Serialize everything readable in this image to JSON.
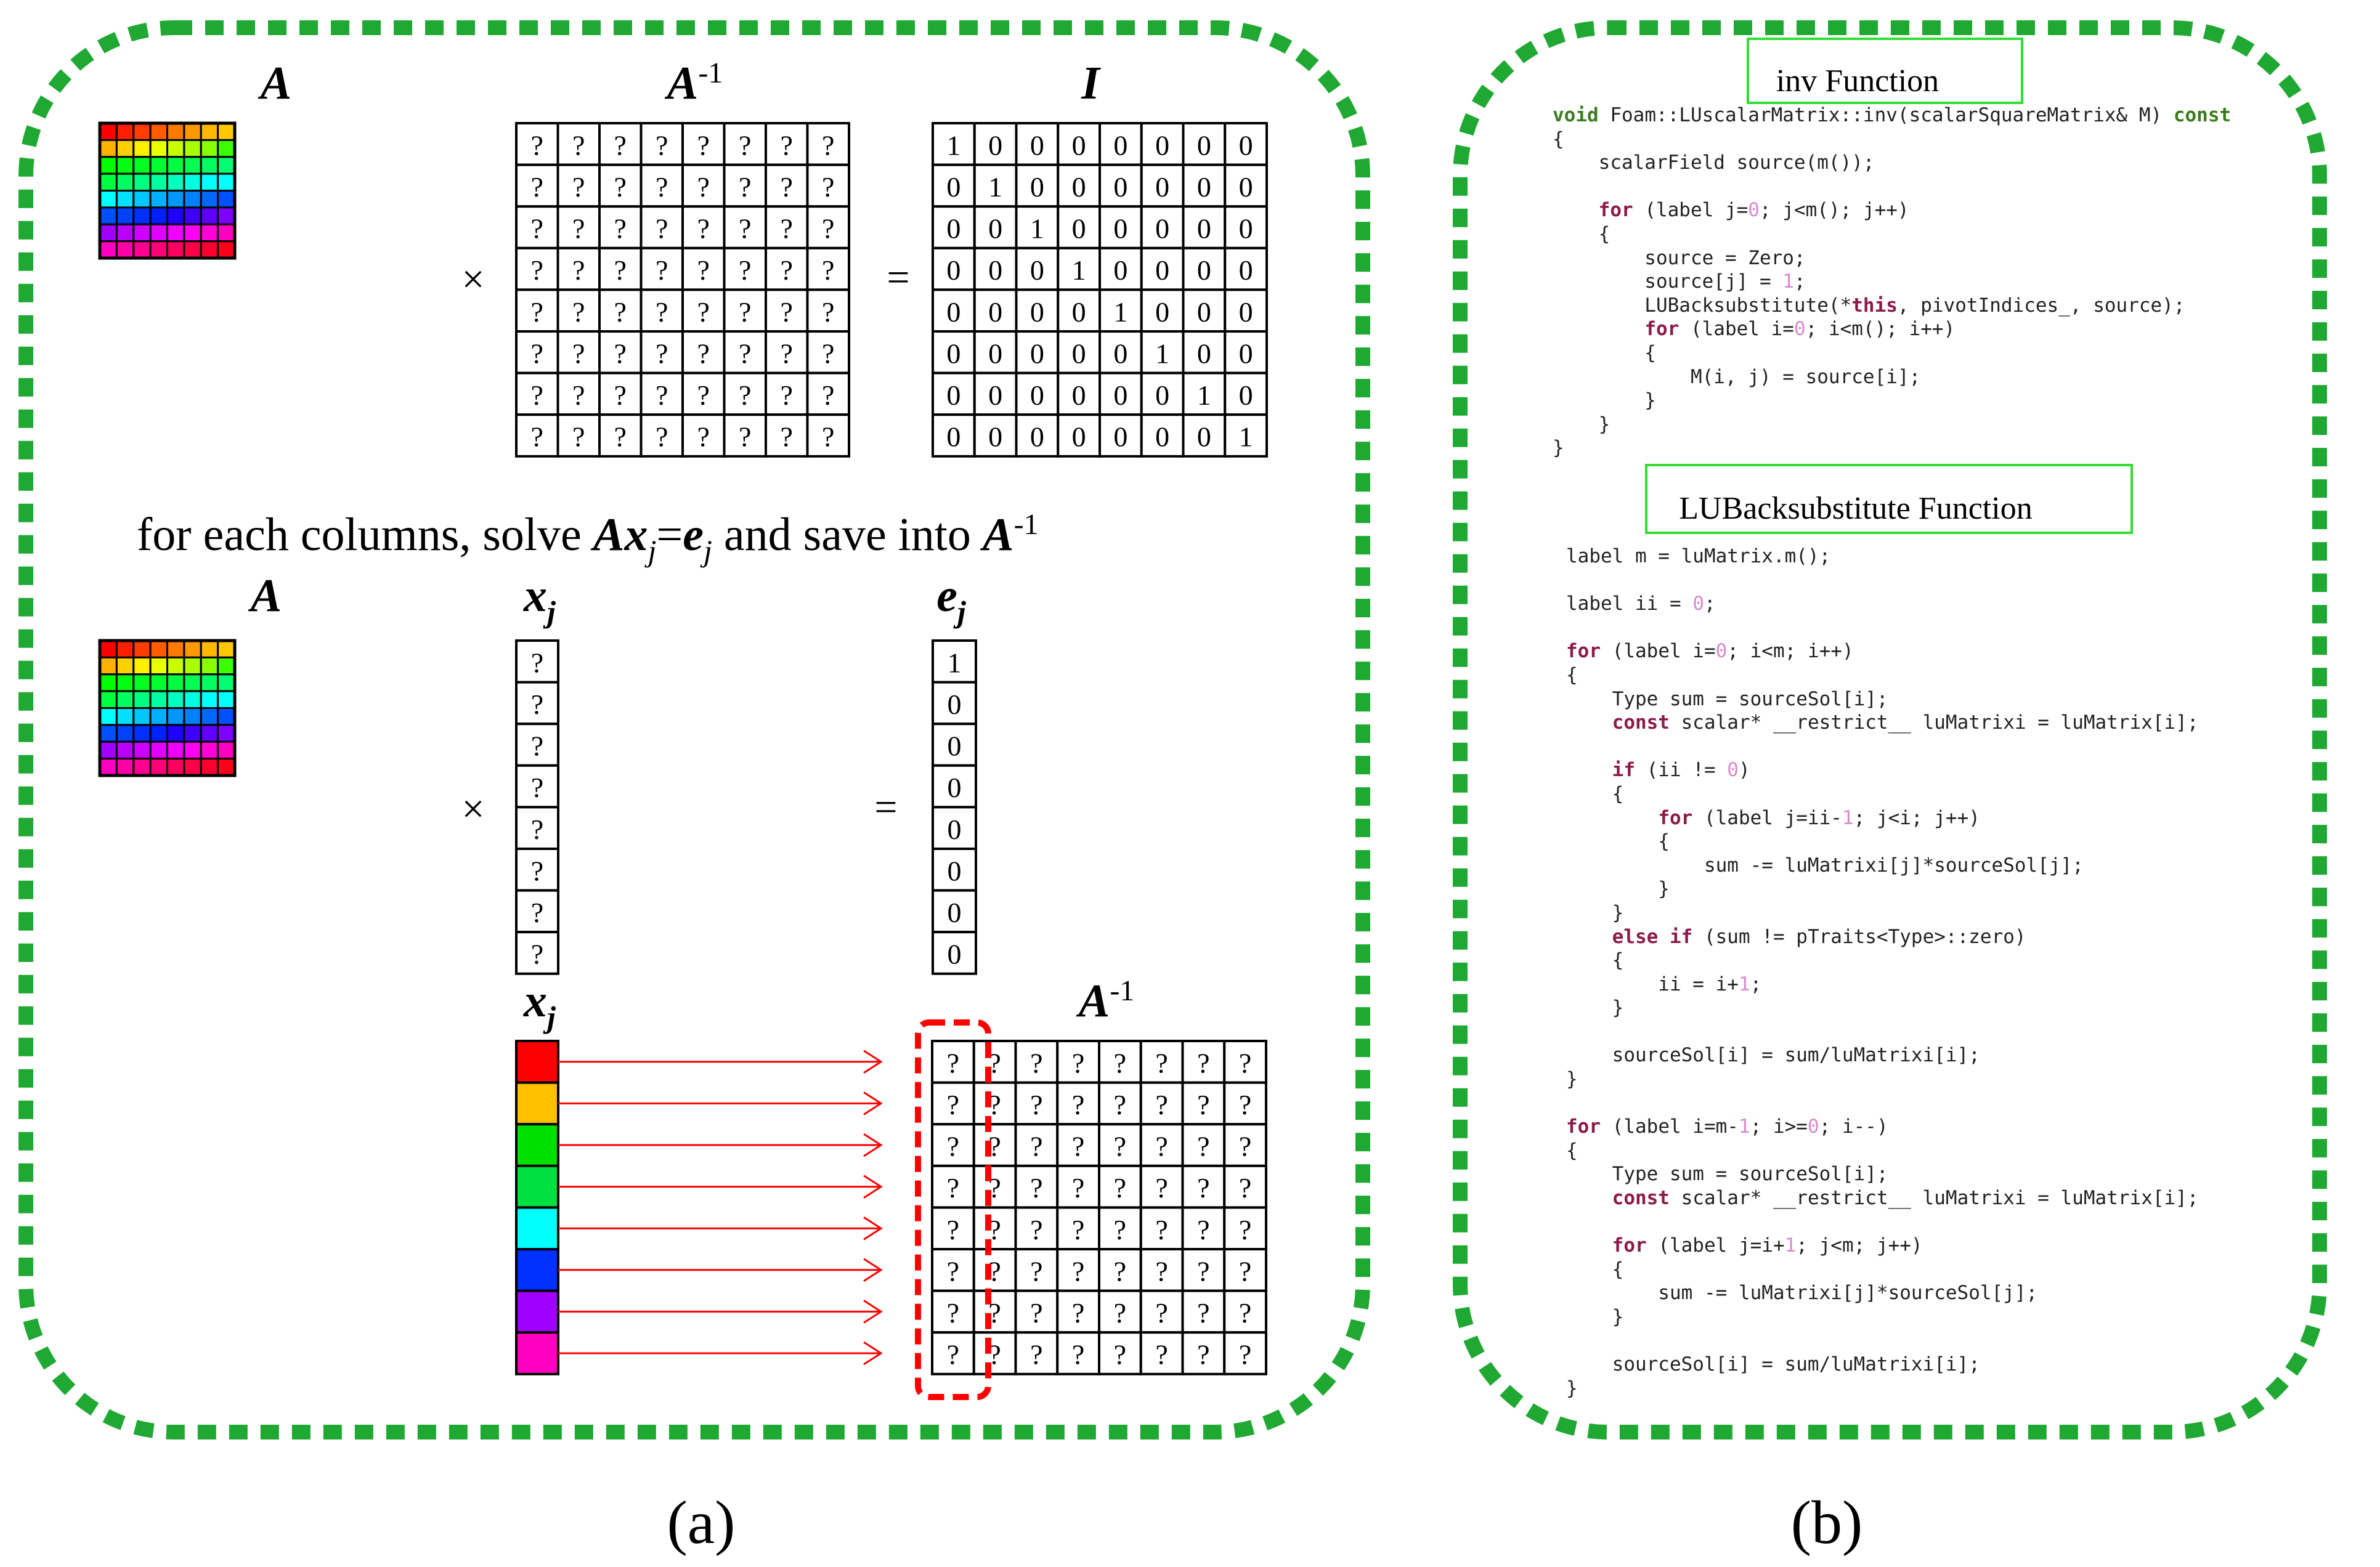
{
  "panel_a": {
    "caption": "(a)",
    "label_A_top": "A",
    "label_Ainv_top": "A",
    "label_Ainv_top_sup": "-1",
    "label_I": "I",
    "times_symbol": "×",
    "equals_symbol": "=",
    "unknown_cell": "?",
    "identity_rows": [
      "10000000",
      "01000000",
      "00100000",
      "00010000",
      "00001000",
      "00000100",
      "00000010",
      "00000001"
    ],
    "sentence": {
      "prefix": "for each columns, solve ",
      "A": "A",
      "x": "x",
      "sub_j": "j",
      "eq": "=",
      "e": "e",
      "middle": " and save into ",
      "Ainv": "A",
      "sup": "-1"
    },
    "label_A_mid": "A",
    "label_xj_mid": "x",
    "label_xj_mid_sub": "j",
    "label_ej": "e",
    "label_ej_sub": "j",
    "ej_values": [
      "1",
      "0",
      "0",
      "0",
      "0",
      "0",
      "0",
      "0"
    ],
    "label_xj_bottom": "x",
    "label_xj_bottom_sub": "j",
    "label_Ainv_bottom": "A",
    "label_Ainv_bottom_sup": "-1",
    "row_colors": [
      [
        "#ff0000",
        "#ff1f00",
        "#ff3d00",
        "#ff5c00",
        "#ff7a00",
        "#ff9900",
        "#ffb700",
        "#ffc800"
      ],
      [
        "#ffb000",
        "#ffd000",
        "#fff000",
        "#e8ff00",
        "#c8ff00",
        "#a8ff00",
        "#88ff00",
        "#3cff00"
      ],
      [
        "#00ff00",
        "#00ff10",
        "#00ff20",
        "#00ff30",
        "#00ff40",
        "#00ff50",
        "#00ff60",
        "#00ff70"
      ],
      [
        "#00ff40",
        "#00ff60",
        "#00ff80",
        "#00ffa0",
        "#00ffc0",
        "#00ffe0",
        "#00ffff",
        "#00ffff"
      ],
      [
        "#00ffff",
        "#00e0ff",
        "#00c8ff",
        "#00b0ff",
        "#0098ff",
        "#0080ff",
        "#0068ff",
        "#0050ff"
      ],
      [
        "#0050ff",
        "#0040ff",
        "#0030ff",
        "#0020ff",
        "#2000ff",
        "#4000ff",
        "#6000ff",
        "#8000ff"
      ],
      [
        "#a000ff",
        "#b800ff",
        "#d000ff",
        "#e000ff",
        "#f000ff",
        "#ff00f0",
        "#ff00d8",
        "#ff00c0"
      ],
      [
        "#ff00c0",
        "#ff00a8",
        "#ff0090",
        "#ff0078",
        "#ff0060",
        "#ff0048",
        "#ff0030",
        "#ff0018"
      ]
    ],
    "xj_colors": [
      "#ff0000",
      "#ffc000",
      "#00e000",
      "#00e040",
      "#00ffff",
      "#0030ff",
      "#a000ff",
      "#ff00c0"
    ],
    "colors": {
      "border_green": "#1fa832",
      "arrow_red": "#ff0000",
      "dash_red": "#ff0000"
    }
  },
  "panel_b": {
    "caption": "(b)",
    "title_inv": "inv Function",
    "title_lub": "LUBacksubstitute Function",
    "title_box_color": "#33dd33",
    "code_inv": [
      [
        [
          "ty",
          "void "
        ],
        [
          "p",
          "Foam::LUscalarMatrix::inv(scalarSquareMatrix& M) "
        ],
        [
          "ty",
          "const"
        ]
      ],
      [
        [
          "p",
          "{"
        ]
      ],
      [
        [
          "p",
          "    scalarField source(m());"
        ]
      ],
      [
        [
          "p",
          ""
        ]
      ],
      [
        [
          "p",
          "    "
        ],
        [
          "kw",
          "for"
        ],
        [
          "p",
          " (label j="
        ],
        [
          "num",
          "0"
        ],
        [
          "p",
          "; j<m(); j++)"
        ]
      ],
      [
        [
          "p",
          "    {"
        ]
      ],
      [
        [
          "p",
          "        source = Zero;"
        ]
      ],
      [
        [
          "p",
          "        source[j] = "
        ],
        [
          "num",
          "1"
        ],
        [
          "p",
          ";"
        ]
      ],
      [
        [
          "p",
          "        LUBacksubstitute(*"
        ],
        [
          "kw",
          "this"
        ],
        [
          "p",
          ", pivotIndices_, source);"
        ]
      ],
      [
        [
          "p",
          "        "
        ],
        [
          "kw",
          "for"
        ],
        [
          "p",
          " (label i="
        ],
        [
          "num",
          "0"
        ],
        [
          "p",
          "; i<m(); i++)"
        ]
      ],
      [
        [
          "p",
          "        {"
        ]
      ],
      [
        [
          "p",
          "            M(i, j) = source[i];"
        ]
      ],
      [
        [
          "p",
          "        }"
        ]
      ],
      [
        [
          "p",
          "    }"
        ]
      ],
      [
        [
          "p",
          "}"
        ]
      ]
    ],
    "code_lub": [
      [
        [
          "p",
          "label m = luMatrix.m();"
        ]
      ],
      [
        [
          "p",
          ""
        ]
      ],
      [
        [
          "p",
          "label ii = "
        ],
        [
          "num",
          "0"
        ],
        [
          "p",
          ";"
        ]
      ],
      [
        [
          "p",
          ""
        ]
      ],
      [
        [
          "kw",
          "for"
        ],
        [
          "p",
          " (label i="
        ],
        [
          "num",
          "0"
        ],
        [
          "p",
          "; i<m; i++)"
        ]
      ],
      [
        [
          "p",
          "{"
        ]
      ],
      [
        [
          "p",
          "    Type sum = sourceSol[i];"
        ]
      ],
      [
        [
          "p",
          "    "
        ],
        [
          "kw",
          "const"
        ],
        [
          "p",
          " scalar* __restrict__ luMatrixi = luMatrix[i];"
        ]
      ],
      [
        [
          "p",
          ""
        ]
      ],
      [
        [
          "p",
          "    "
        ],
        [
          "kw",
          "if"
        ],
        [
          "p",
          " (ii != "
        ],
        [
          "num",
          "0"
        ],
        [
          "p",
          ")"
        ]
      ],
      [
        [
          "p",
          "    {"
        ]
      ],
      [
        [
          "p",
          "        "
        ],
        [
          "kw",
          "for"
        ],
        [
          "p",
          " (label j=ii-"
        ],
        [
          "num",
          "1"
        ],
        [
          "p",
          "; j<i; j++)"
        ]
      ],
      [
        [
          "p",
          "        {"
        ]
      ],
      [
        [
          "p",
          "            sum -= luMatrixi[j]*sourceSol[j];"
        ]
      ],
      [
        [
          "p",
          "        }"
        ]
      ],
      [
        [
          "p",
          "    }"
        ]
      ],
      [
        [
          "p",
          "    "
        ],
        [
          "kw",
          "else if"
        ],
        [
          "p",
          " (sum != pTraits<Type>::zero)"
        ]
      ],
      [
        [
          "p",
          "    {"
        ]
      ],
      [
        [
          "p",
          "        ii = i+"
        ],
        [
          "num",
          "1"
        ],
        [
          "p",
          ";"
        ]
      ],
      [
        [
          "p",
          "    }"
        ]
      ],
      [
        [
          "p",
          ""
        ]
      ],
      [
        [
          "p",
          "    sourceSol[i] = sum/luMatrixi[i];"
        ]
      ],
      [
        [
          "p",
          "}"
        ]
      ],
      [
        [
          "p",
          ""
        ]
      ],
      [
        [
          "kw",
          "for"
        ],
        [
          "p",
          " (label i=m-"
        ],
        [
          "num",
          "1"
        ],
        [
          "p",
          "; i>="
        ],
        [
          "num",
          "0"
        ],
        [
          "p",
          "; i--)"
        ]
      ],
      [
        [
          "p",
          "{"
        ]
      ],
      [
        [
          "p",
          "    Type sum = sourceSol[i];"
        ]
      ],
      [
        [
          "p",
          "    "
        ],
        [
          "kw",
          "const"
        ],
        [
          "p",
          " scalar* __restrict__ luMatrixi = luMatrix[i];"
        ]
      ],
      [
        [
          "p",
          ""
        ]
      ],
      [
        [
          "p",
          "    "
        ],
        [
          "kw",
          "for"
        ],
        [
          "p",
          " (label j=i+"
        ],
        [
          "num",
          "1"
        ],
        [
          "p",
          "; j<m; j++)"
        ]
      ],
      [
        [
          "p",
          "    {"
        ]
      ],
      [
        [
          "p",
          "        sum -= luMatrixi[j]*sourceSol[j];"
        ]
      ],
      [
        [
          "p",
          "    }"
        ]
      ],
      [
        [
          "p",
          ""
        ]
      ],
      [
        [
          "p",
          "    sourceSol[i] = sum/luMatrixi[i];"
        ]
      ],
      [
        [
          "p",
          "}"
        ]
      ]
    ]
  }
}
